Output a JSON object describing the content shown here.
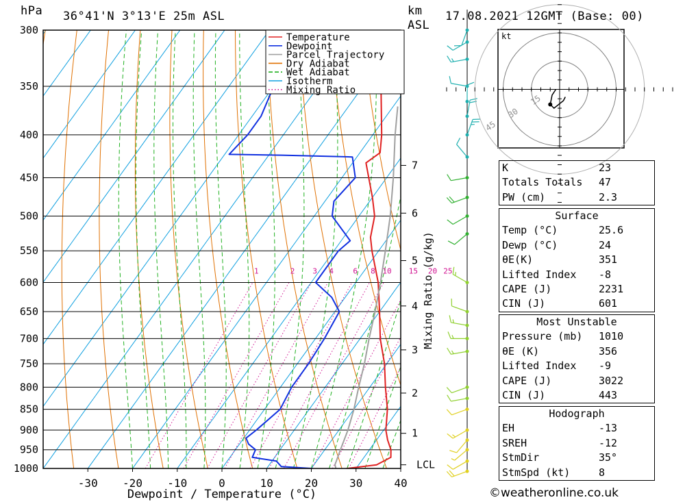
{
  "header": {
    "pressure_unit": "hPa",
    "location": "36°41'N  3°13'E  25m  ASL",
    "height_unit_1": "km",
    "height_unit_2": "ASL",
    "datetime": "17.08.2021  12GMT  (Base: 00)"
  },
  "hodograph": {
    "unit": "kt",
    "ring_labels": [
      "15",
      "30",
      "45"
    ],
    "trace_kt": [
      [
        -2,
        0
      ],
      [
        -4,
        -3
      ],
      [
        -5,
        -8
      ],
      [
        -3,
        -10
      ],
      [
        2,
        -6
      ],
      [
        3,
        -4
      ]
    ]
  },
  "indices": {
    "basic": [
      {
        "label": "K",
        "value": "23"
      },
      {
        "label": "Totals Totals",
        "value": "47"
      },
      {
        "label": "PW (cm)",
        "value": "2.3"
      }
    ],
    "surface_title": "Surface",
    "surface": [
      {
        "label": "Temp (°C)",
        "value": "25.6"
      },
      {
        "label": "Dewp (°C)",
        "value": "24"
      },
      {
        "label": "θE(K)",
        "value": "351"
      },
      {
        "label": "Lifted Index",
        "value": "-8"
      },
      {
        "label": "CAPE (J)",
        "value": "2231"
      },
      {
        "label": "CIN (J)",
        "value": "601"
      }
    ],
    "mu_title": "Most Unstable",
    "mu": [
      {
        "label": "Pressure (mb)",
        "value": "1010"
      },
      {
        "label": "θE (K)",
        "value": "356"
      },
      {
        "label": "Lifted Index",
        "value": "-9"
      },
      {
        "label": "CAPE (J)",
        "value": "3022"
      },
      {
        "label": "CIN (J)",
        "value": "443"
      }
    ],
    "hodo_title": "Hodograph",
    "hodo": [
      {
        "label": "EH",
        "value": "-13"
      },
      {
        "label": "SREH",
        "value": "-12"
      },
      {
        "label": "StmDir",
        "value": "35°"
      },
      {
        "label": "StmSpd (kt)",
        "value": "8"
      }
    ]
  },
  "copyright": "©weatheronline.co.uk",
  "chart_data": {
    "type": "line",
    "xlabel": "Dewpoint / Temperature (°C)",
    "ylabel": "hPa",
    "xlim": [
      -40,
      40
    ],
    "ylim": [
      1000,
      300
    ],
    "x_ticks": [
      -30,
      -20,
      -10,
      0,
      10,
      20,
      30,
      40
    ],
    "pressure_ticks": [
      300,
      350,
      400,
      450,
      500,
      550,
      600,
      650,
      700,
      750,
      800,
      850,
      900,
      950,
      1000
    ],
    "height_axis_label": "Mixing Ratio (g/kg)",
    "height_ticks": [
      {
        "label": "1",
        "p": 908
      },
      {
        "label": "2",
        "p": 813
      },
      {
        "label": "3",
        "p": 722
      },
      {
        "label": "4",
        "p": 640
      },
      {
        "label": "5",
        "p": 565
      },
      {
        "label": "6",
        "p": 496
      },
      {
        "label": "7",
        "p": 435
      },
      {
        "label": "LCL",
        "p": 990
      }
    ],
    "mixing_ratio_labels": [
      "1",
      "2",
      "3",
      "4",
      "6",
      "8",
      "10",
      "15",
      "20",
      "25"
    ],
    "mixing_ratio_label_p": 590,
    "legend": [
      "Temperature",
      "Dewpoint",
      "Parcel Trajectory",
      "Dry Adiabat",
      "Wet Adiabat",
      "Isotherm",
      "Mixing Ratio"
    ],
    "legend_colors": [
      "#e02020",
      "#1030e0",
      "#a0a0a0",
      "#e07000",
      "#20b020",
      "#10a0e0",
      "#d01090"
    ],
    "series": [
      {
        "name": "Temperature",
        "points": [
          [
            1008,
            25.5
          ],
          [
            1000,
            28
          ],
          [
            990,
            34
          ],
          [
            970,
            36
          ],
          [
            950,
            34.8
          ],
          [
            925,
            32.5
          ],
          [
            900,
            30.5
          ],
          [
            850,
            27.5
          ],
          [
            800,
            23.5
          ],
          [
            750,
            19.5
          ],
          [
            700,
            14.5
          ],
          [
            650,
            10
          ],
          [
            600,
            5
          ],
          [
            550,
            -1.5
          ],
          [
            530,
            -4
          ],
          [
            500,
            -6.5
          ],
          [
            475,
            -10
          ],
          [
            450,
            -14
          ],
          [
            432,
            -17
          ],
          [
            428,
            -16.5
          ],
          [
            420,
            -15.5
          ],
          [
            400,
            -18
          ],
          [
            350,
            -26
          ],
          [
            300,
            -34.5
          ]
        ]
      },
      {
        "name": "Dewpoint",
        "points": [
          [
            1008,
            24.5
          ],
          [
            1000,
            20
          ],
          [
            995,
            13
          ],
          [
            980,
            11
          ],
          [
            970,
            5
          ],
          [
            950,
            4.5
          ],
          [
            935,
            2
          ],
          [
            920,
            0.5
          ],
          [
            900,
            1.5
          ],
          [
            850,
            3.5
          ],
          [
            800,
            2.5
          ],
          [
            750,
            2.5
          ],
          [
            700,
            2
          ],
          [
            650,
            1
          ],
          [
            625,
            -3
          ],
          [
            600,
            -9
          ],
          [
            585,
            -9
          ],
          [
            550,
            -9
          ],
          [
            535,
            -8
          ],
          [
            500,
            -16
          ],
          [
            480,
            -18
          ],
          [
            450,
            -17
          ],
          [
            425,
            -21
          ],
          [
            423,
            -37
          ],
          [
            422,
            -49
          ],
          [
            400,
            -48
          ],
          [
            380,
            -48
          ],
          [
            350,
            -50
          ],
          [
            300,
            -55
          ]
        ]
      },
      {
        "name": "Parcel Trajectory",
        "points": [
          [
            1000,
            25.5
          ],
          [
            990,
            24.7
          ],
          [
            950,
            23.5
          ],
          [
            900,
            22
          ],
          [
            850,
            20
          ],
          [
            800,
            17.5
          ],
          [
            750,
            15
          ],
          [
            700,
            12
          ],
          [
            650,
            9
          ],
          [
            600,
            5.5
          ],
          [
            550,
            1.5
          ],
          [
            500,
            -3
          ],
          [
            450,
            -8.5
          ],
          [
            400,
            -15
          ],
          [
            370,
            -19
          ]
        ]
      }
    ],
    "wind_barbs_kt": [
      {
        "p": 1008,
        "dir": 250,
        "spd": 20
      },
      {
        "p": 980,
        "dir": 240,
        "spd": 10
      },
      {
        "p": 950,
        "dir": 230,
        "spd": 5
      },
      {
        "p": 925,
        "dir": 220,
        "spd": 10
      },
      {
        "p": 900,
        "dir": 240,
        "spd": 15
      },
      {
        "p": 850,
        "dir": 250,
        "spd": 10
      },
      {
        "p": 825,
        "dir": 260,
        "spd": 10
      },
      {
        "p": 800,
        "dir": 250,
        "spd": 10
      },
      {
        "p": 725,
        "dir": 260,
        "spd": 15
      },
      {
        "p": 700,
        "dir": 270,
        "spd": 15
      },
      {
        "p": 675,
        "dir": 280,
        "spd": 15
      },
      {
        "p": 650,
        "dir": 290,
        "spd": 10
      },
      {
        "p": 600,
        "dir": 300,
        "spd": 15
      },
      {
        "p": 525,
        "dir": 230,
        "spd": 10
      },
      {
        "p": 500,
        "dir": 240,
        "spd": 10
      },
      {
        "p": 475,
        "dir": 250,
        "spd": 20
      },
      {
        "p": 450,
        "dir": 260,
        "spd": 10
      },
      {
        "p": 425,
        "dir": 320,
        "spd": 10
      },
      {
        "p": 400,
        "dir": 20,
        "spd": 25
      },
      {
        "p": 380,
        "dir": 10,
        "spd": 20
      },
      {
        "p": 365,
        "dir": 0,
        "spd": 10
      },
      {
        "p": 350,
        "dir": 280,
        "spd": 10
      },
      {
        "p": 325,
        "dir": 260,
        "spd": 15
      },
      {
        "p": 310,
        "dir": 240,
        "spd": 10
      },
      {
        "p": 300,
        "dir": 200,
        "spd": 10
      }
    ]
  }
}
